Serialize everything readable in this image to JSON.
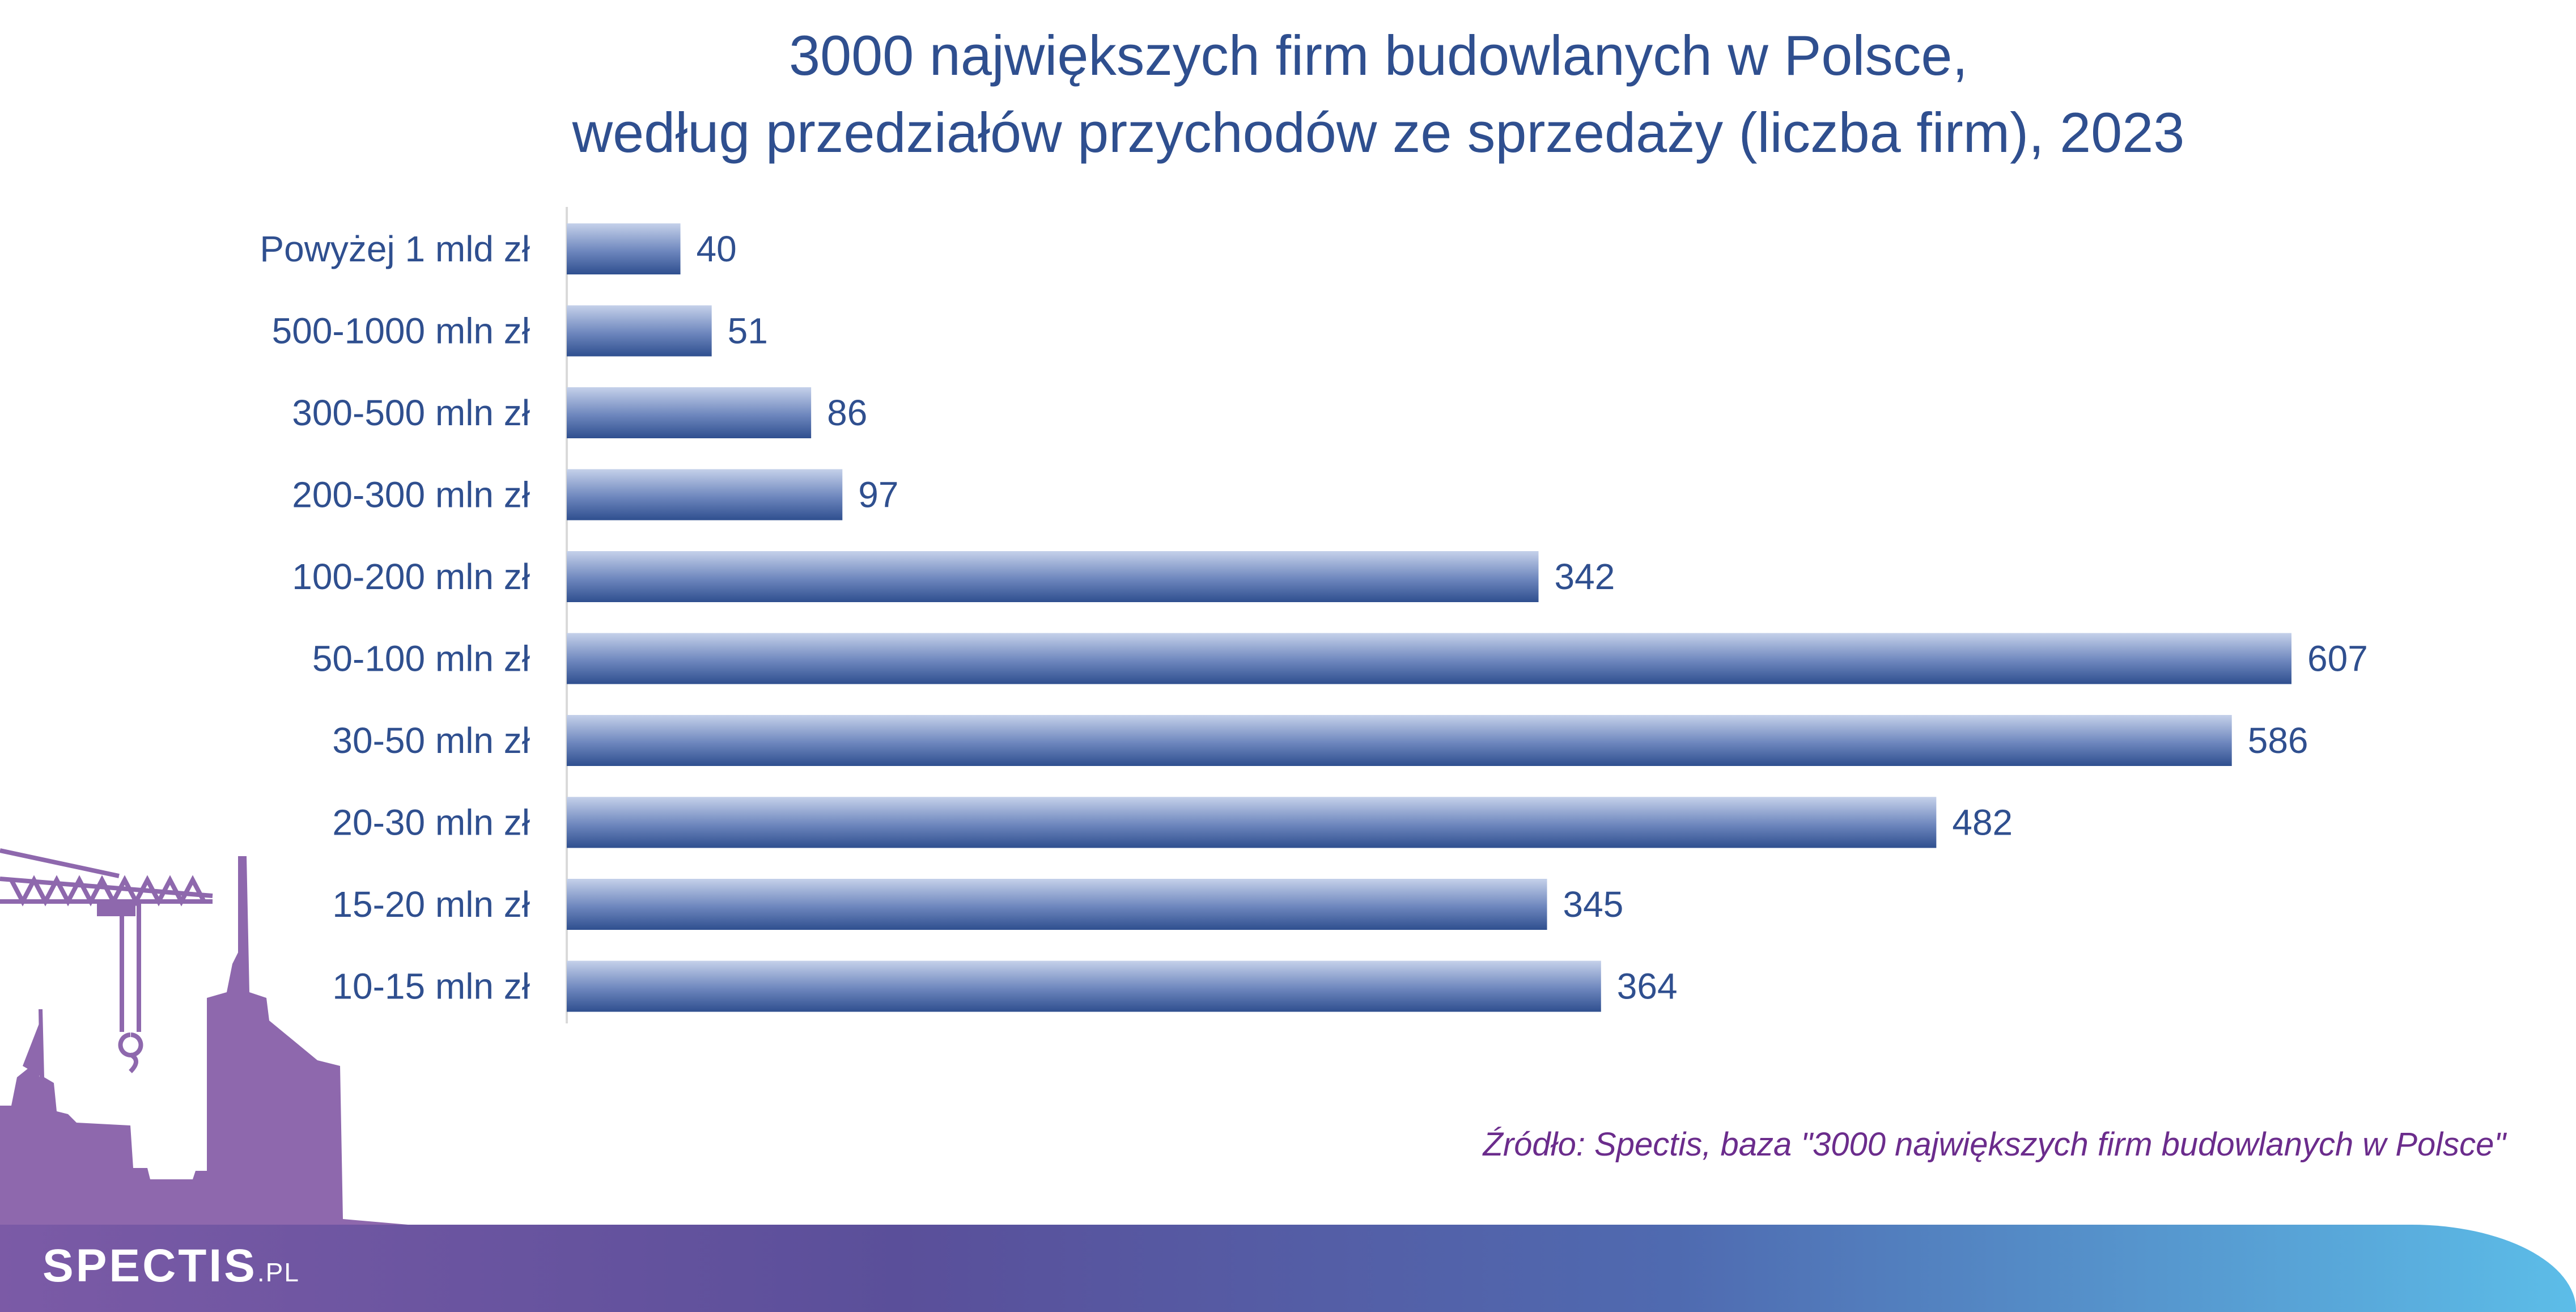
{
  "chart_data": {
    "type": "bar",
    "orientation": "horizontal",
    "title_lines": [
      "3000 największych firm budowlanych w Polsce,",
      "według przedziałów przychodów ze sprzedaży (liczba firm), 2023"
    ],
    "categories": [
      "Powyżej 1 mld zł",
      "500-1000 mln zł",
      "300-500 mln zł",
      "200-300 mln zł",
      "100-200 mln zł",
      "50-100 mln zł",
      "30-50 mln zł",
      "20-30 mln zł",
      "15-20 mln zł",
      "10-15 mln zł"
    ],
    "values": [
      40,
      51,
      86,
      97,
      342,
      607,
      586,
      482,
      345,
      364
    ],
    "data_labels": [
      "40",
      "51",
      "86",
      "97",
      "342",
      "607",
      "586",
      "482",
      "345",
      "364"
    ],
    "xlim": [
      0,
      607
    ],
    "grid": false,
    "legend": "none",
    "bar_colors": {
      "light": "#c5d1ea",
      "dark": "#2f4f8f"
    }
  },
  "source": "Źródło: Spectis, baza \"3000 największych firm budowlanych w Polsce\"",
  "brand": {
    "name": "SPECTIS",
    "suffix": ".PL"
  },
  "colors": {
    "title": "#2f4f8f",
    "source": "#6b2c8c",
    "silhouette": "#8e68ad"
  }
}
